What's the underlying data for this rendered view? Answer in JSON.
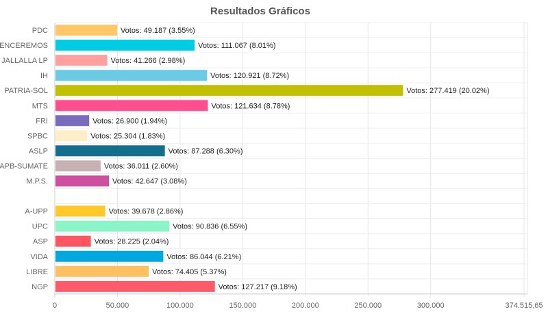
{
  "chart_data": {
    "type": "bar",
    "orientation": "horizontal",
    "title": "Resultados Gráficos",
    "xlabel": "",
    "ylabel": "",
    "xlim": [
      0,
      374515.65
    ],
    "x_ticks": [
      "0",
      "50.000",
      "100.000",
      "150.000",
      "200.000",
      "250.000",
      "300.000",
      "374.515,65"
    ],
    "x_tick_values": [
      0,
      50000,
      100000,
      150000,
      200000,
      250000,
      300000,
      374515.65
    ],
    "grid": true,
    "categories": [
      "PDC",
      "VENCEREMOS",
      "JALLALLA LP",
      "IH",
      "PATRIA-SOL",
      "MTS",
      "FRI",
      "SPBC",
      "ASLP",
      "APB-SUMATE",
      "M.P.S.",
      "",
      "A-UPP",
      "UPC",
      "ASP",
      "VIDA",
      "LIBRE",
      "NGP"
    ],
    "values": [
      49187,
      111067,
      41266,
      120921,
      277419,
      121634,
      26900,
      25304,
      87288,
      36011,
      42647,
      null,
      39678,
      90836,
      28225,
      86044,
      74405,
      127217
    ],
    "data_labels": [
      "Votos: 49.187 (3.55%)",
      "Votos: 111.067 (8.01%)",
      "Votos: 41.266 (2.98%)",
      "Votos: 120.921 (8.72%)",
      "Votos: 277.419 (20.02%)",
      "Votos: 121.634 (8.78%)",
      "Votos: 26.900 (1.94%)",
      "Votos: 25.304 (1.83%)",
      "Votos: 87.288 (6.30%)",
      "Votos: 36.011 (2.60%)",
      "Votos: 42.647 (3.08%)",
      "",
      "Votos: 39.678 (2.86%)",
      "Votos: 90.836 (6.55%)",
      "Votos: 28.225 (2.04%)",
      "Votos: 86.044 (6.21%)",
      "Votos: 74.405 (5.37%)",
      "Votos: 127.217 (9.18%)"
    ],
    "colors": [
      "#ffc766",
      "#00cde3",
      "#ff9f9f",
      "#6ccbe4",
      "#c0bf00",
      "#ff4f8e",
      "#7a6cbc",
      "#ffeec8",
      "#136e8e",
      "#c8b1b4",
      "#d04ea0",
      "#ffffff",
      "#ffca28",
      "#8cf5c8",
      "#ff5560",
      "#00a8e0",
      "#ffc060",
      "#ff5a6a"
    ]
  }
}
